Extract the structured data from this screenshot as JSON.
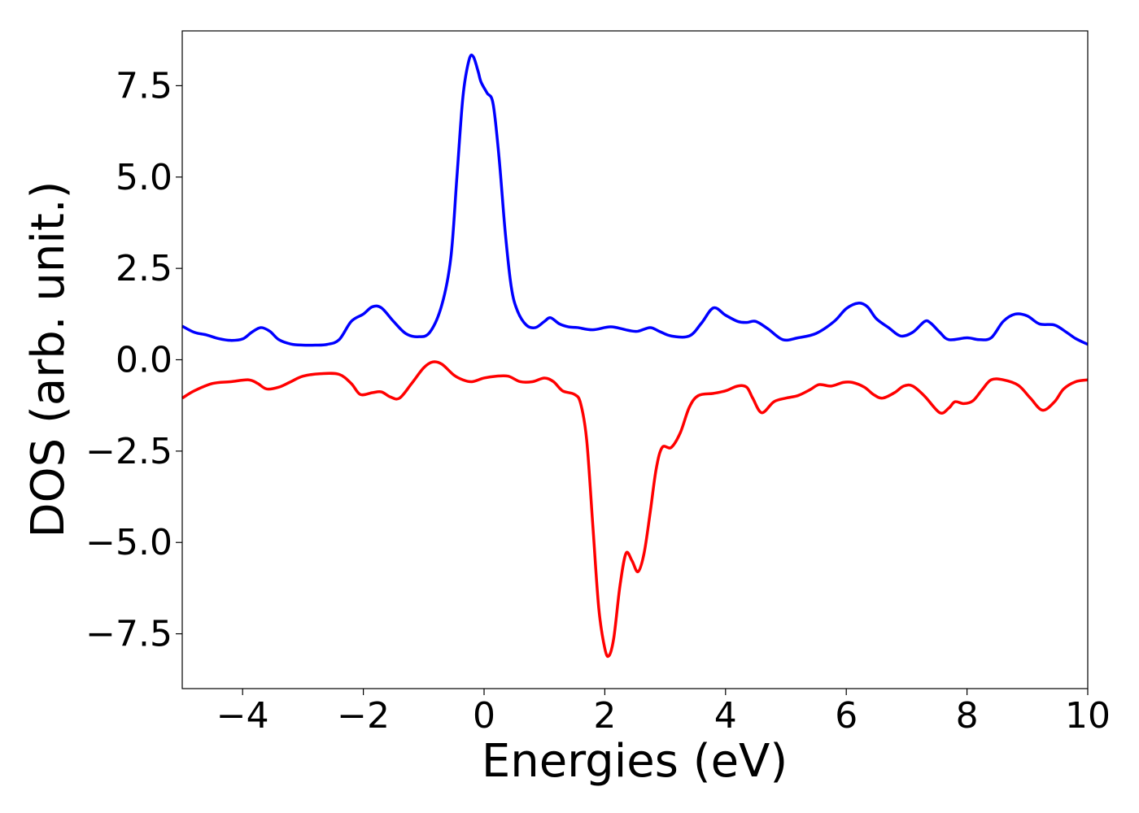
{
  "chart_data": {
    "type": "line",
    "title": "",
    "xlabel": "Energies (eV)",
    "ylabel": "DOS (arb. unit.)",
    "xlim": [
      -5,
      10
    ],
    "ylim": [
      -9,
      9
    ],
    "xticks": [
      -4,
      -2,
      0,
      2,
      4,
      6,
      8,
      10
    ],
    "xtick_labels": [
      "−4",
      "−2",
      "0",
      "2",
      "4",
      "6",
      "8",
      "10"
    ],
    "yticks": [
      -7.5,
      -5.0,
      -2.5,
      0.0,
      2.5,
      5.0,
      7.5
    ],
    "ytick_labels": [
      "−7.5",
      "−5.0",
      "−2.5",
      "0.0",
      "2.5",
      "5.0",
      "7.5"
    ],
    "grid": false,
    "legend": "none",
    "series": [
      {
        "color": "#0000ff",
        "points": [
          [
            -5.0,
            0.92
          ],
          [
            -4.8,
            0.75
          ],
          [
            -4.6,
            0.68
          ],
          [
            -4.4,
            0.58
          ],
          [
            -4.2,
            0.53
          ],
          [
            -4.0,
            0.57
          ],
          [
            -3.85,
            0.75
          ],
          [
            -3.7,
            0.88
          ],
          [
            -3.55,
            0.78
          ],
          [
            -3.4,
            0.55
          ],
          [
            -3.2,
            0.43
          ],
          [
            -3.0,
            0.4
          ],
          [
            -2.8,
            0.4
          ],
          [
            -2.6,
            0.42
          ],
          [
            -2.4,
            0.55
          ],
          [
            -2.2,
            1.05
          ],
          [
            -2.0,
            1.25
          ],
          [
            -1.85,
            1.45
          ],
          [
            -1.7,
            1.42
          ],
          [
            -1.5,
            1.05
          ],
          [
            -1.3,
            0.72
          ],
          [
            -1.1,
            0.63
          ],
          [
            -0.9,
            0.75
          ],
          [
            -0.7,
            1.5
          ],
          [
            -0.55,
            2.8
          ],
          [
            -0.45,
            5.0
          ],
          [
            -0.35,
            7.2
          ],
          [
            -0.25,
            8.2
          ],
          [
            -0.18,
            8.3
          ],
          [
            -0.1,
            7.9
          ],
          [
            -0.05,
            7.6
          ],
          [
            0.05,
            7.3
          ],
          [
            0.15,
            7.0
          ],
          [
            0.25,
            5.5
          ],
          [
            0.35,
            3.5
          ],
          [
            0.45,
            2.0
          ],
          [
            0.55,
            1.35
          ],
          [
            0.7,
            0.95
          ],
          [
            0.85,
            0.88
          ],
          [
            1.0,
            1.05
          ],
          [
            1.1,
            1.15
          ],
          [
            1.25,
            0.98
          ],
          [
            1.4,
            0.9
          ],
          [
            1.55,
            0.88
          ],
          [
            1.8,
            0.82
          ],
          [
            2.1,
            0.9
          ],
          [
            2.4,
            0.8
          ],
          [
            2.55,
            0.78
          ],
          [
            2.75,
            0.88
          ],
          [
            2.9,
            0.78
          ],
          [
            3.1,
            0.65
          ],
          [
            3.4,
            0.65
          ],
          [
            3.6,
            1.0
          ],
          [
            3.8,
            1.42
          ],
          [
            4.0,
            1.22
          ],
          [
            4.2,
            1.05
          ],
          [
            4.35,
            1.02
          ],
          [
            4.5,
            1.05
          ],
          [
            4.7,
            0.85
          ],
          [
            4.95,
            0.55
          ],
          [
            5.2,
            0.6
          ],
          [
            5.5,
            0.72
          ],
          [
            5.8,
            1.05
          ],
          [
            6.0,
            1.4
          ],
          [
            6.2,
            1.55
          ],
          [
            6.35,
            1.45
          ],
          [
            6.5,
            1.12
          ],
          [
            6.7,
            0.88
          ],
          [
            6.9,
            0.65
          ],
          [
            7.1,
            0.75
          ],
          [
            7.3,
            1.05
          ],
          [
            7.4,
            1.0
          ],
          [
            7.55,
            0.75
          ],
          [
            7.7,
            0.55
          ],
          [
            8.0,
            0.6
          ],
          [
            8.2,
            0.55
          ],
          [
            8.4,
            0.6
          ],
          [
            8.6,
            1.05
          ],
          [
            8.8,
            1.25
          ],
          [
            9.0,
            1.2
          ],
          [
            9.2,
            0.98
          ],
          [
            9.45,
            0.95
          ],
          [
            9.65,
            0.75
          ],
          [
            9.8,
            0.58
          ],
          [
            10.0,
            0.42
          ]
        ]
      },
      {
        "color": "#ff0000",
        "points": [
          [
            -5.0,
            -1.05
          ],
          [
            -4.8,
            -0.85
          ],
          [
            -4.5,
            -0.65
          ],
          [
            -4.2,
            -0.6
          ],
          [
            -3.9,
            -0.55
          ],
          [
            -3.75,
            -0.65
          ],
          [
            -3.6,
            -0.8
          ],
          [
            -3.4,
            -0.75
          ],
          [
            -3.2,
            -0.6
          ],
          [
            -3.0,
            -0.45
          ],
          [
            -2.7,
            -0.38
          ],
          [
            -2.4,
            -0.4
          ],
          [
            -2.2,
            -0.65
          ],
          [
            -2.05,
            -0.95
          ],
          [
            -1.85,
            -0.9
          ],
          [
            -1.7,
            -0.88
          ],
          [
            -1.55,
            -1.02
          ],
          [
            -1.4,
            -1.05
          ],
          [
            -1.2,
            -0.65
          ],
          [
            -1.0,
            -0.22
          ],
          [
            -0.85,
            -0.06
          ],
          [
            -0.7,
            -0.12
          ],
          [
            -0.5,
            -0.42
          ],
          [
            -0.35,
            -0.55
          ],
          [
            -0.2,
            -0.6
          ],
          [
            0.0,
            -0.5
          ],
          [
            0.2,
            -0.45
          ],
          [
            0.4,
            -0.45
          ],
          [
            0.6,
            -0.6
          ],
          [
            0.8,
            -0.6
          ],
          [
            1.0,
            -0.5
          ],
          [
            1.15,
            -0.6
          ],
          [
            1.3,
            -0.85
          ],
          [
            1.5,
            -0.95
          ],
          [
            1.6,
            -1.2
          ],
          [
            1.7,
            -2.2
          ],
          [
            1.8,
            -4.5
          ],
          [
            1.9,
            -6.8
          ],
          [
            2.0,
            -7.9
          ],
          [
            2.07,
            -8.1
          ],
          [
            2.15,
            -7.6
          ],
          [
            2.25,
            -6.2
          ],
          [
            2.35,
            -5.3
          ],
          [
            2.45,
            -5.5
          ],
          [
            2.55,
            -5.8
          ],
          [
            2.65,
            -5.3
          ],
          [
            2.75,
            -4.2
          ],
          [
            2.85,
            -3.0
          ],
          [
            2.95,
            -2.4
          ],
          [
            3.1,
            -2.4
          ],
          [
            3.25,
            -2.0
          ],
          [
            3.4,
            -1.3
          ],
          [
            3.55,
            -0.98
          ],
          [
            3.8,
            -0.92
          ],
          [
            4.0,
            -0.85
          ],
          [
            4.2,
            -0.72
          ],
          [
            4.35,
            -0.75
          ],
          [
            4.45,
            -1.05
          ],
          [
            4.6,
            -1.45
          ],
          [
            4.8,
            -1.15
          ],
          [
            5.0,
            -1.05
          ],
          [
            5.2,
            -0.98
          ],
          [
            5.4,
            -0.82
          ],
          [
            5.55,
            -0.68
          ],
          [
            5.75,
            -0.72
          ],
          [
            5.95,
            -0.62
          ],
          [
            6.1,
            -0.62
          ],
          [
            6.3,
            -0.75
          ],
          [
            6.45,
            -0.95
          ],
          [
            6.6,
            -1.05
          ],
          [
            6.8,
            -0.9
          ],
          [
            6.95,
            -0.72
          ],
          [
            7.1,
            -0.72
          ],
          [
            7.3,
            -1.0
          ],
          [
            7.55,
            -1.45
          ],
          [
            7.7,
            -1.32
          ],
          [
            7.8,
            -1.15
          ],
          [
            7.95,
            -1.2
          ],
          [
            8.1,
            -1.12
          ],
          [
            8.25,
            -0.82
          ],
          [
            8.4,
            -0.55
          ],
          [
            8.6,
            -0.55
          ],
          [
            8.85,
            -0.7
          ],
          [
            9.05,
            -1.05
          ],
          [
            9.25,
            -1.38
          ],
          [
            9.45,
            -1.15
          ],
          [
            9.6,
            -0.8
          ],
          [
            9.8,
            -0.6
          ],
          [
            10.0,
            -0.55
          ]
        ]
      }
    ]
  }
}
